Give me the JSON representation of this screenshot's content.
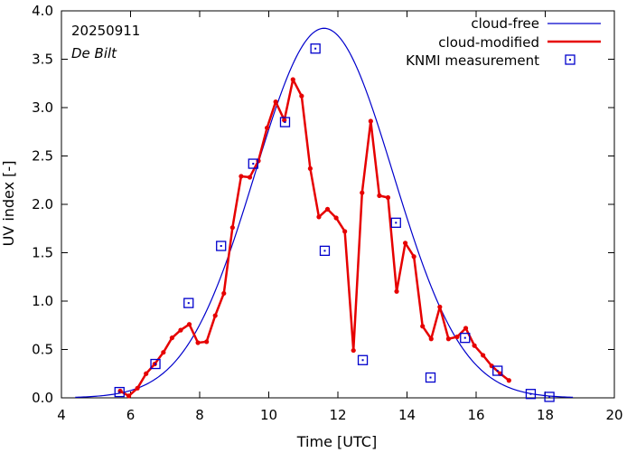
{
  "chart_data": {
    "type": "line",
    "xlabel": "Time  [UTC]",
    "ylabel": "UV index  [-]",
    "xlim": [
      4,
      20
    ],
    "ylim": [
      0,
      4
    ],
    "xticks": [
      4,
      6,
      8,
      10,
      12,
      14,
      16,
      18,
      20
    ],
    "yticks": [
      0.0,
      0.5,
      1.0,
      1.5,
      2.0,
      2.5,
      3.0,
      3.5,
      4.0
    ],
    "xtick_labels": [
      "4",
      "6",
      "8",
      "10",
      "12",
      "14",
      "16",
      "18",
      "20"
    ],
    "ytick_labels": [
      "0.0",
      "0.5",
      "1.0",
      "1.5",
      "2.0",
      "2.5",
      "3.0",
      "3.5",
      "4.0"
    ],
    "annotations": [
      {
        "text": "20250911",
        "style": "normal"
      },
      {
        "text": "De Bilt",
        "style": "italic"
      }
    ],
    "legend_position": "top-right",
    "series": [
      {
        "name": "cloud-free",
        "kind": "line",
        "color": "#0000cc",
        "peak_x": 11.6,
        "peak_y": 3.82,
        "sigma": 2.0,
        "x_range": [
          4.4,
          18.8
        ]
      },
      {
        "name": "cloud-modified",
        "kind": "line-points",
        "color": "#e60000",
        "x": [
          5.7,
          5.95,
          6.2,
          6.45,
          6.7,
          6.95,
          7.2,
          7.45,
          7.7,
          7.95,
          8.2,
          8.45,
          8.7,
          8.95,
          9.2,
          9.45,
          9.7,
          9.95,
          10.2,
          10.45,
          10.7,
          10.95,
          11.2,
          11.45,
          11.7,
          11.95,
          12.2,
          12.45,
          12.7,
          12.95,
          13.2,
          13.45,
          13.7,
          13.95,
          14.2,
          14.45,
          14.7,
          14.95,
          15.2,
          15.45,
          15.7,
          15.95,
          16.2,
          16.45,
          16.7,
          16.95
        ],
        "y": [
          0.07,
          0.02,
          0.1,
          0.25,
          0.35,
          0.47,
          0.62,
          0.7,
          0.76,
          0.57,
          0.58,
          0.85,
          1.08,
          1.76,
          2.29,
          2.28,
          2.45,
          2.79,
          3.06,
          2.87,
          3.29,
          3.12,
          2.37,
          1.87,
          1.95,
          1.86,
          1.72,
          0.49,
          2.12,
          2.86,
          2.09,
          2.07,
          1.1,
          1.6,
          1.46,
          0.74,
          0.61,
          0.94,
          0.61,
          0.63,
          0.72,
          0.54,
          0.44,
          0.33,
          0.25,
          0.18
        ]
      },
      {
        "name": "KNMI measurement",
        "kind": "markers",
        "color": "#0000cc",
        "x": [
          5.68,
          6.72,
          7.68,
          8.62,
          9.55,
          10.47,
          11.35,
          11.62,
          12.72,
          13.68,
          14.68,
          15.68,
          16.62,
          17.58,
          18.12
        ],
        "y": [
          0.06,
          0.35,
          0.98,
          1.57,
          2.42,
          2.85,
          3.61,
          1.52,
          0.39,
          1.81,
          0.21,
          0.62,
          0.28,
          0.04,
          0.01
        ]
      }
    ]
  }
}
